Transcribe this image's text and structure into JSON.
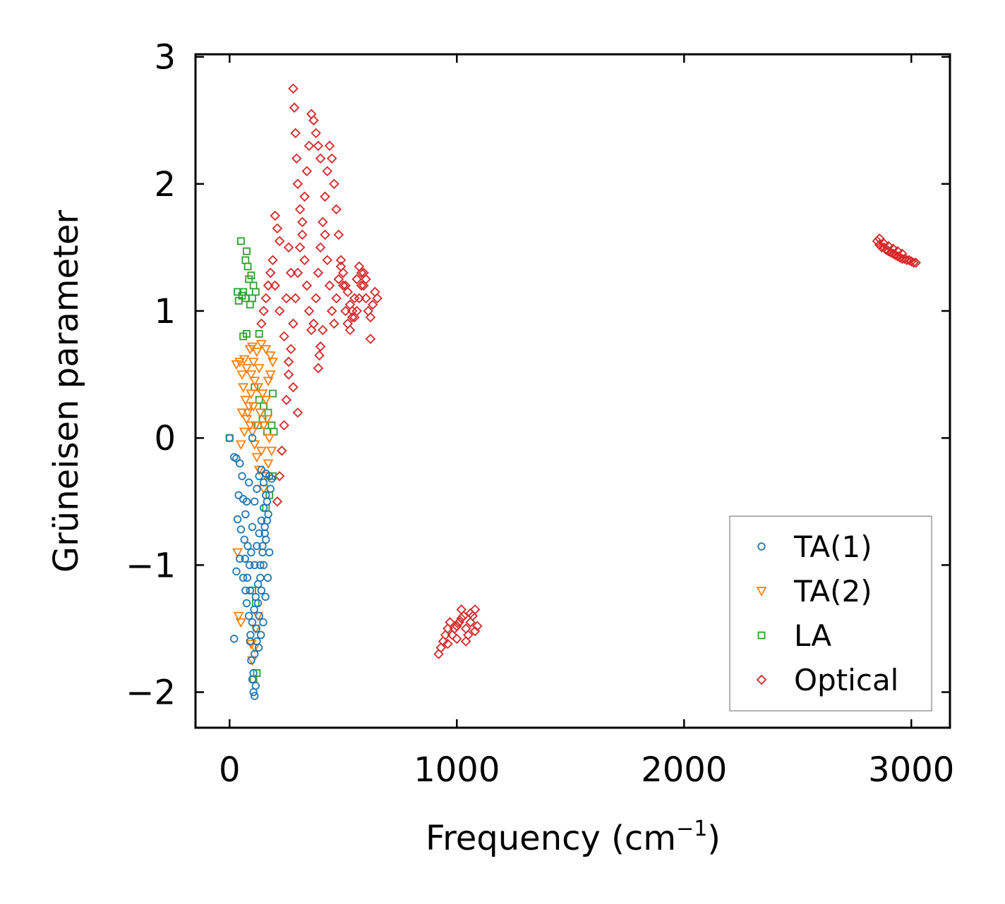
{
  "chart_data": {
    "type": "scatter",
    "title": "",
    "xlabel_main": "Frequency (cm",
    "xlabel_sup": "−1",
    "xlabel_end": ")",
    "ylabel": "Grüneisen parameter",
    "xlim": [
      -150,
      3170
    ],
    "ylim": [
      -2.28,
      3.02
    ],
    "xticks": [
      0,
      1000,
      2000,
      3000
    ],
    "xtick_labels": [
      "0",
      "1000",
      "2000",
      "3000"
    ],
    "yticks": [
      -2,
      -1,
      0,
      1,
      2,
      3
    ],
    "ytick_labels": [
      "−2",
      "−1",
      "0",
      "1",
      "2",
      "3"
    ],
    "grid": false,
    "legend_position": "lower-right",
    "series": [
      {
        "name": "TA(1)",
        "marker": "circle",
        "color": "#1f77b4",
        "points": [
          [
            0,
            0.0
          ],
          [
            20,
            -0.15
          ],
          [
            30,
            -0.16
          ],
          [
            45,
            -0.2
          ],
          [
            55,
            -0.3
          ],
          [
            40,
            -0.45
          ],
          [
            60,
            -0.48
          ],
          [
            35,
            -0.64
          ],
          [
            50,
            -0.72
          ],
          [
            70,
            -0.6
          ],
          [
            80,
            -0.85
          ],
          [
            30,
            -1.05
          ],
          [
            45,
            -0.95
          ],
          [
            60,
            -1.1
          ],
          [
            70,
            -1.2
          ],
          [
            75,
            -1.3
          ],
          [
            85,
            -1.4
          ],
          [
            90,
            -1.6
          ],
          [
            20,
            -1.58
          ],
          [
            95,
            -1.75
          ],
          [
            100,
            -1.9
          ],
          [
            105,
            -2.0
          ],
          [
            110,
            -2.03
          ],
          [
            115,
            -1.95
          ],
          [
            100,
            0.0
          ],
          [
            120,
            -1.6
          ],
          [
            130,
            -1.4
          ],
          [
            140,
            -1.2
          ],
          [
            150,
            -1.0
          ],
          [
            160,
            -0.8
          ],
          [
            170,
            -0.6
          ],
          [
            180,
            -0.4
          ],
          [
            175,
            -0.3
          ],
          [
            165,
            -0.5
          ],
          [
            155,
            -0.7
          ],
          [
            145,
            -0.9
          ],
          [
            135,
            -1.1
          ],
          [
            125,
            -1.3
          ],
          [
            118,
            -1.5
          ],
          [
            110,
            -1.7
          ],
          [
            105,
            -1.85
          ],
          [
            90,
            -1.2
          ],
          [
            95,
            -0.9
          ],
          [
            100,
            -0.7
          ],
          [
            110,
            -0.5
          ],
          [
            120,
            -0.4
          ],
          [
            130,
            -0.3
          ],
          [
            140,
            -0.25
          ],
          [
            150,
            -0.35
          ],
          [
            160,
            -0.28
          ],
          [
            185,
            -0.32
          ],
          [
            175,
            -0.9
          ],
          [
            168,
            -1.1
          ],
          [
            158,
            -1.25
          ],
          [
            148,
            -1.45
          ],
          [
            138,
            -1.55
          ],
          [
            128,
            -1.65
          ],
          [
            85,
            -0.35
          ],
          [
            75,
            -0.5
          ],
          [
            65,
            -0.8
          ],
          [
            110,
            -1.0
          ],
          [
            120,
            -0.85
          ],
          [
            130,
            -0.75
          ],
          [
            140,
            -0.65
          ],
          [
            150,
            -0.55
          ],
          [
            160,
            -0.45
          ],
          [
            115,
            -1.25
          ],
          [
            125,
            -1.15
          ],
          [
            135,
            -1.0
          ],
          [
            145,
            -0.85
          ],
          [
            155,
            -0.75
          ],
          [
            165,
            -0.65
          ],
          [
            100,
            -1.45
          ],
          [
            108,
            -1.35
          ],
          [
            92,
            -1.55
          ],
          [
            88,
            -1.0
          ],
          [
            78,
            -1.1
          ],
          [
            68,
            -0.95
          ]
        ]
      },
      {
        "name": "TA(2)",
        "marker": "triangle-down",
        "color": "#ff7f0e",
        "points": [
          [
            30,
            0.58
          ],
          [
            45,
            0.6
          ],
          [
            55,
            0.5
          ],
          [
            65,
            0.62
          ],
          [
            75,
            0.55
          ],
          [
            90,
            0.7
          ],
          [
            100,
            0.72
          ],
          [
            120,
            0.68
          ],
          [
            140,
            0.74
          ],
          [
            160,
            0.7
          ],
          [
            180,
            0.65
          ],
          [
            190,
            0.6
          ],
          [
            60,
            0.4
          ],
          [
            70,
            0.3
          ],
          [
            80,
            0.2
          ],
          [
            90,
            0.1
          ],
          [
            100,
            0.05
          ],
          [
            110,
            -0.05
          ],
          [
            120,
            -0.15
          ],
          [
            130,
            -0.25
          ],
          [
            140,
            -0.1
          ],
          [
            150,
            0.1
          ],
          [
            160,
            0.3
          ],
          [
            170,
            0.45
          ],
          [
            180,
            0.5
          ],
          [
            130,
            0.55
          ],
          [
            110,
            0.45
          ],
          [
            95,
            0.35
          ],
          [
            85,
            0.25
          ],
          [
            75,
            0.15
          ],
          [
            65,
            0.05
          ],
          [
            55,
            0.2
          ],
          [
            50,
            -0.05
          ],
          [
            150,
            -0.4
          ],
          [
            160,
            -0.3
          ],
          [
            170,
            -0.2
          ],
          [
            35,
            -0.9
          ],
          [
            40,
            -1.4
          ],
          [
            50,
            -1.45
          ],
          [
            95,
            -1.62
          ],
          [
            110,
            -1.65
          ],
          [
            100,
            -1.75
          ],
          [
            115,
            -1.5
          ],
          [
            125,
            -1.4
          ],
          [
            105,
            0.6
          ],
          [
            125,
            0.4
          ],
          [
            145,
            0.35
          ],
          [
            165,
            0.15
          ],
          [
            175,
            0.0
          ],
          [
            185,
            -0.1
          ],
          [
            135,
            0.2
          ],
          [
            115,
            0.1
          ],
          [
            105,
            0.25
          ],
          [
            95,
            0.5
          ]
        ]
      },
      {
        "name": "LA",
        "marker": "square",
        "color": "#2ca02c",
        "points": [
          [
            50,
            1.55
          ],
          [
            75,
            1.47
          ],
          [
            70,
            1.4
          ],
          [
            80,
            1.35
          ],
          [
            85,
            1.25
          ],
          [
            95,
            1.28
          ],
          [
            60,
            1.15
          ],
          [
            35,
            1.15
          ],
          [
            40,
            1.08
          ],
          [
            55,
            1.12
          ],
          [
            70,
            1.1
          ],
          [
            90,
            1.05
          ],
          [
            100,
            1.1
          ],
          [
            105,
            1.2
          ],
          [
            115,
            1.15
          ],
          [
            60,
            0.8
          ],
          [
            75,
            0.82
          ],
          [
            130,
            0.82
          ],
          [
            110,
            0.4
          ],
          [
            130,
            0.3
          ],
          [
            150,
            0.25
          ],
          [
            170,
            0.2
          ],
          [
            190,
            0.35
          ],
          [
            185,
            0.1
          ],
          [
            165,
            0.05
          ],
          [
            145,
            0.15
          ],
          [
            125,
            0.1
          ],
          [
            190,
            -0.3
          ],
          [
            175,
            -0.45
          ],
          [
            160,
            -0.55
          ],
          [
            115,
            -1.3
          ],
          [
            120,
            -1.85
          ],
          [
            105,
            -1.9
          ],
          [
            100,
            -1.2
          ],
          [
            0,
            0.0
          ],
          [
            195,
            0.05
          ]
        ]
      },
      {
        "name": "Optical",
        "marker": "diamond",
        "color": "#d62728",
        "points": [
          [
            280,
            2.75
          ],
          [
            285,
            2.6
          ],
          [
            290,
            2.4
          ],
          [
            295,
            2.2
          ],
          [
            300,
            2.0
          ],
          [
            310,
            1.8
          ],
          [
            320,
            1.6
          ],
          [
            330,
            1.4
          ],
          [
            340,
            1.2
          ],
          [
            350,
            1.0
          ],
          [
            360,
            0.85
          ],
          [
            370,
            0.9
          ],
          [
            380,
            1.1
          ],
          [
            390,
            1.3
          ],
          [
            400,
            1.5
          ],
          [
            410,
            1.7
          ],
          [
            420,
            1.9
          ],
          [
            430,
            2.1
          ],
          [
            440,
            2.3
          ],
          [
            450,
            2.2
          ],
          [
            460,
            2.0
          ],
          [
            470,
            1.8
          ],
          [
            480,
            1.6
          ],
          [
            490,
            1.4
          ],
          [
            500,
            1.2
          ],
          [
            510,
            1.0
          ],
          [
            520,
            0.9
          ],
          [
            530,
            0.85
          ],
          [
            540,
            0.95
          ],
          [
            550,
            1.1
          ],
          [
            560,
            1.25
          ],
          [
            570,
            1.35
          ],
          [
            580,
            1.3
          ],
          [
            590,
            1.2
          ],
          [
            600,
            1.1
          ],
          [
            610,
            1.0
          ],
          [
            620,
            0.95
          ],
          [
            630,
            1.05
          ],
          [
            640,
            1.15
          ],
          [
            650,
            1.1
          ],
          [
            360,
            2.55
          ],
          [
            370,
            2.5
          ],
          [
            380,
            2.4
          ],
          [
            390,
            2.3
          ],
          [
            400,
            2.2
          ],
          [
            350,
            2.3
          ],
          [
            340,
            2.1
          ],
          [
            330,
            1.9
          ],
          [
            320,
            1.7
          ],
          [
            310,
            1.5
          ],
          [
            300,
            1.3
          ],
          [
            290,
            1.1
          ],
          [
            280,
            0.9
          ],
          [
            270,
            0.7
          ],
          [
            260,
            0.5
          ],
          [
            250,
            0.3
          ],
          [
            240,
            0.1
          ],
          [
            230,
            -0.1
          ],
          [
            220,
            -0.3
          ],
          [
            210,
            -0.5
          ],
          [
            200,
            1.75
          ],
          [
            210,
            1.65
          ],
          [
            220,
            1.55
          ],
          [
            190,
            1.4
          ],
          [
            180,
            1.3
          ],
          [
            170,
            1.2
          ],
          [
            160,
            1.1
          ],
          [
            150,
            1.0
          ],
          [
            140,
            0.9
          ],
          [
            200,
            1.2
          ],
          [
            220,
            1.0
          ],
          [
            240,
            0.8
          ],
          [
            260,
            0.6
          ],
          [
            280,
            0.4
          ],
          [
            300,
            0.2
          ],
          [
            260,
            1.5
          ],
          [
            270,
            1.3
          ],
          [
            250,
            1.1
          ],
          [
            390,
            0.55
          ],
          [
            395,
            0.65
          ],
          [
            400,
            0.72
          ],
          [
            410,
            0.85
          ],
          [
            620,
            0.78
          ],
          [
            420,
            1.6
          ],
          [
            430,
            1.4
          ],
          [
            440,
            1.2
          ],
          [
            450,
            1.0
          ],
          [
            460,
            0.9
          ],
          [
            470,
            1.1
          ],
          [
            480,
            1.25
          ],
          [
            490,
            1.35
          ],
          [
            500,
            1.3
          ],
          [
            510,
            1.2
          ],
          [
            520,
            1.15
          ],
          [
            530,
            1.05
          ],
          [
            540,
            1.0
          ],
          [
            550,
            0.95
          ],
          [
            560,
            1.0
          ],
          [
            570,
            1.1
          ],
          [
            580,
            1.2
          ],
          [
            590,
            1.3
          ],
          [
            600,
            1.25
          ],
          [
            920,
            -1.7
          ],
          [
            930,
            -1.65
          ],
          [
            940,
            -1.6
          ],
          [
            950,
            -1.55
          ],
          [
            960,
            -1.5
          ],
          [
            970,
            -1.45
          ],
          [
            980,
            -1.55
          ],
          [
            990,
            -1.5
          ],
          [
            1000,
            -1.48
          ],
          [
            1010,
            -1.45
          ],
          [
            1020,
            -1.42
          ],
          [
            1030,
            -1.4
          ],
          [
            1040,
            -1.5
          ],
          [
            1050,
            -1.55
          ],
          [
            1060,
            -1.45
          ],
          [
            1070,
            -1.4
          ],
          [
            1080,
            -1.35
          ],
          [
            1090,
            -1.48
          ],
          [
            960,
            -1.62
          ],
          [
            1000,
            -1.58
          ],
          [
            1040,
            -1.6
          ],
          [
            1080,
            -1.52
          ],
          [
            1020,
            -1.35
          ],
          [
            1060,
            -1.38
          ],
          [
            2850,
            1.55
          ],
          [
            2860,
            1.52
          ],
          [
            2870,
            1.5
          ],
          [
            2880,
            1.5
          ],
          [
            2890,
            1.48
          ],
          [
            2900,
            1.47
          ],
          [
            2910,
            1.46
          ],
          [
            2920,
            1.45
          ],
          [
            2930,
            1.44
          ],
          [
            2940,
            1.43
          ],
          [
            2950,
            1.42
          ],
          [
            2960,
            1.41
          ],
          [
            2970,
            1.41
          ],
          [
            2980,
            1.4
          ],
          [
            2990,
            1.4
          ],
          [
            3000,
            1.39
          ],
          [
            3010,
            1.38
          ],
          [
            3020,
            1.38
          ],
          [
            2860,
            1.57
          ],
          [
            2880,
            1.53
          ],
          [
            2900,
            1.51
          ],
          [
            2920,
            1.49
          ],
          [
            2940,
            1.47
          ],
          [
            2960,
            1.45
          ]
        ]
      }
    ]
  }
}
